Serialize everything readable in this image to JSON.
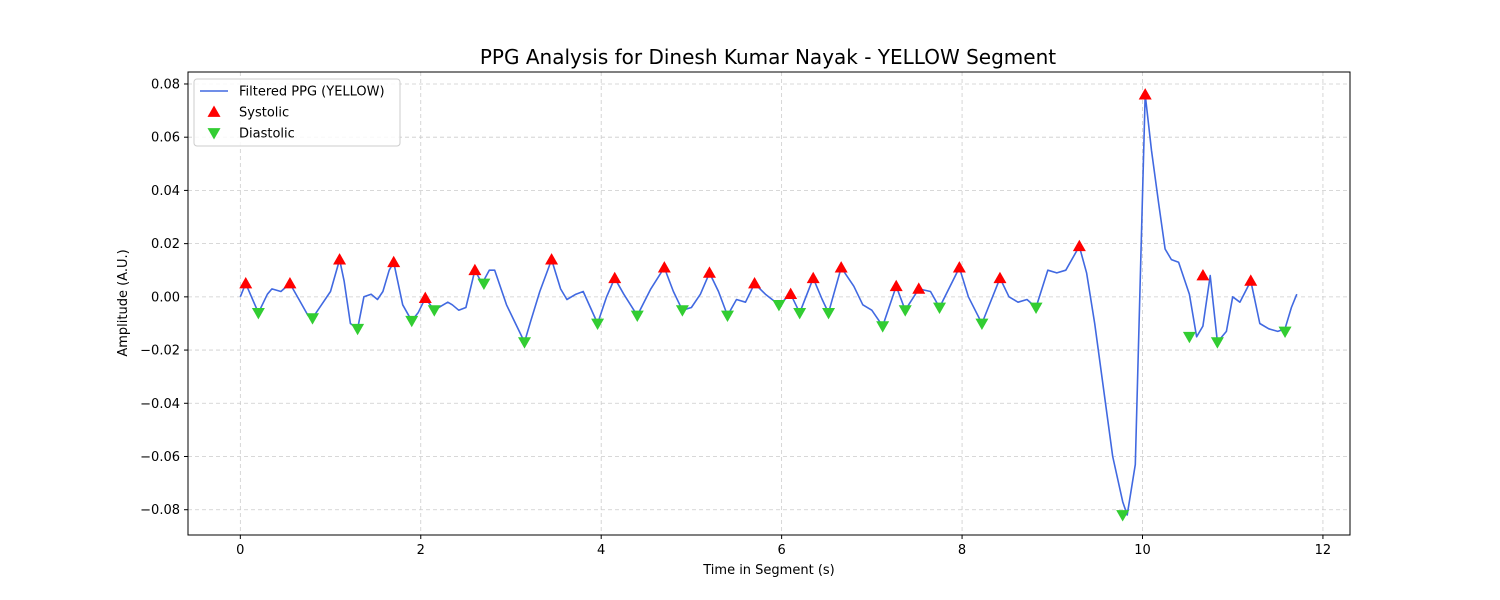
{
  "chart_data": {
    "type": "line",
    "title": "PPG Analysis for Dinesh Kumar Nayak - YELLOW Segment",
    "xlabel": "Time in Segment (s)",
    "ylabel": "Amplitude (A.U.)",
    "xlim": [
      -0.58,
      12.3
    ],
    "ylim": [
      -0.0895,
      0.0845
    ],
    "xticks": [
      0,
      2,
      4,
      6,
      8,
      10,
      12
    ],
    "xtick_labels": [
      "0",
      "2",
      "4",
      "6",
      "8",
      "10",
      "12"
    ],
    "yticks": [
      -0.08,
      -0.06,
      -0.04,
      -0.02,
      0.0,
      0.02,
      0.04,
      0.06,
      0.08
    ],
    "ytick_labels": [
      "−0.08",
      "−0.06",
      "−0.04",
      "−0.02",
      "0.00",
      "0.02",
      "0.04",
      "0.06",
      "0.08"
    ],
    "grid": true,
    "legend_position": "top-left",
    "series": [
      {
        "name": "Filtered PPG (YELLOW)",
        "kind": "line",
        "color": "#4169e1",
        "x": [
          0,
          0.06,
          0.2,
          0.3,
          0.35,
          0.45,
          0.55,
          0.65,
          0.75,
          0.8,
          0.9,
          1.0,
          1.1,
          1.15,
          1.22,
          1.3,
          1.37,
          1.45,
          1.52,
          1.58,
          1.65,
          1.7,
          1.8,
          1.9,
          1.97,
          2.05,
          2.15,
          2.25,
          2.3,
          2.35,
          2.42,
          2.5,
          2.6,
          2.68,
          2.76,
          2.82,
          2.95,
          3.05,
          3.15,
          3.22,
          3.32,
          3.45,
          3.55,
          3.62,
          3.72,
          3.8,
          3.96,
          4.06,
          4.15,
          4.25,
          4.4,
          4.55,
          4.7,
          4.8,
          4.9,
          5.0,
          5.1,
          5.2,
          5.3,
          5.4,
          5.5,
          5.6,
          5.7,
          5.82,
          5.97,
          6.1,
          6.2,
          6.35,
          6.45,
          6.52,
          6.66,
          6.8,
          6.9,
          7.0,
          7.12,
          7.27,
          7.37,
          7.52,
          7.65,
          7.75,
          7.97,
          8.07,
          8.22,
          8.42,
          8.52,
          8.62,
          8.72,
          8.82,
          8.95,
          9.05,
          9.15,
          9.3,
          9.38,
          9.47,
          9.57,
          9.67,
          9.78,
          9.83,
          9.92,
          10.03,
          10.1,
          10.18,
          10.25,
          10.32,
          10.4,
          10.52,
          10.6,
          10.67,
          10.75,
          10.83,
          10.93,
          11.0,
          11.08,
          11.2,
          11.3,
          11.4,
          11.5,
          11.58,
          11.65,
          11.71
        ],
        "y": [
          0.0,
          0.005,
          -0.006,
          0.001,
          0.003,
          0.002,
          0.005,
          -0.001,
          -0.007,
          -0.008,
          -0.003,
          0.002,
          0.014,
          0.006,
          -0.01,
          -0.012,
          0.0,
          0.001,
          -0.001,
          0.002,
          0.01,
          0.013,
          -0.003,
          -0.009,
          -0.006,
          -0.0005,
          -0.005,
          -0.003,
          -0.002,
          -0.003,
          -0.005,
          -0.004,
          0.01,
          0.005,
          0.01,
          0.01,
          -0.003,
          -0.01,
          -0.017,
          -0.009,
          0.002,
          0.014,
          0.003,
          -0.001,
          0.001,
          0.002,
          -0.01,
          0.0,
          0.007,
          0.001,
          -0.007,
          0.003,
          0.011,
          0.002,
          -0.005,
          -0.004,
          0.001,
          0.009,
          0.002,
          -0.007,
          -0.001,
          -0.002,
          0.005,
          0.001,
          -0.003,
          0.001,
          -0.006,
          0.007,
          -0.001,
          -0.006,
          0.011,
          0.004,
          -0.003,
          -0.005,
          -0.011,
          0.004,
          -0.005,
          0.003,
          0.002,
          -0.004,
          0.011,
          0.0,
          -0.01,
          0.007,
          0.0,
          -0.002,
          -0.001,
          -0.004,
          0.01,
          0.009,
          0.01,
          0.019,
          0.009,
          -0.01,
          -0.035,
          -0.06,
          -0.077,
          -0.082,
          -0.063,
          0.076,
          0.055,
          0.035,
          0.018,
          0.014,
          0.013,
          0.001,
          -0.015,
          -0.011,
          0.008,
          -0.017,
          -0.013,
          0.0,
          -0.002,
          0.006,
          -0.01,
          -0.012,
          -0.013,
          -0.012,
          -0.004,
          0.001
        ]
      },
      {
        "name": "Systolic",
        "kind": "marker",
        "marker": "triangle-up",
        "color": "#ff0000",
        "x": [
          0.06,
          0.55,
          1.1,
          1.7,
          2.05,
          2.6,
          3.45,
          4.15,
          4.7,
          5.2,
          5.7,
          6.1,
          6.35,
          6.66,
          7.27,
          7.52,
          7.97,
          8.42,
          9.3,
          10.03,
          10.67,
          11.2
        ],
        "y": [
          0.005,
          0.005,
          0.014,
          0.013,
          -0.0005,
          0.01,
          0.014,
          0.007,
          0.011,
          0.009,
          0.005,
          0.001,
          0.007,
          0.011,
          0.004,
          0.003,
          0.011,
          0.007,
          0.019,
          0.076,
          0.008,
          0.006
        ]
      },
      {
        "name": "Diastolic",
        "kind": "marker",
        "marker": "triangle-down",
        "color": "#32cd32",
        "x": [
          0.2,
          0.8,
          1.3,
          1.9,
          2.15,
          2.7,
          3.15,
          3.96,
          4.4,
          4.9,
          5.4,
          5.97,
          6.2,
          6.52,
          7.12,
          7.37,
          7.75,
          8.22,
          8.82,
          9.78,
          10.52,
          10.83,
          11.58
        ],
        "y": [
          -0.006,
          -0.008,
          -0.012,
          -0.009,
          -0.005,
          0.005,
          -0.017,
          -0.01,
          -0.007,
          -0.005,
          -0.007,
          -0.003,
          -0.006,
          -0.006,
          -0.011,
          -0.005,
          -0.004,
          -0.01,
          -0.004,
          -0.082,
          -0.015,
          -0.017,
          -0.013
        ]
      }
    ]
  }
}
